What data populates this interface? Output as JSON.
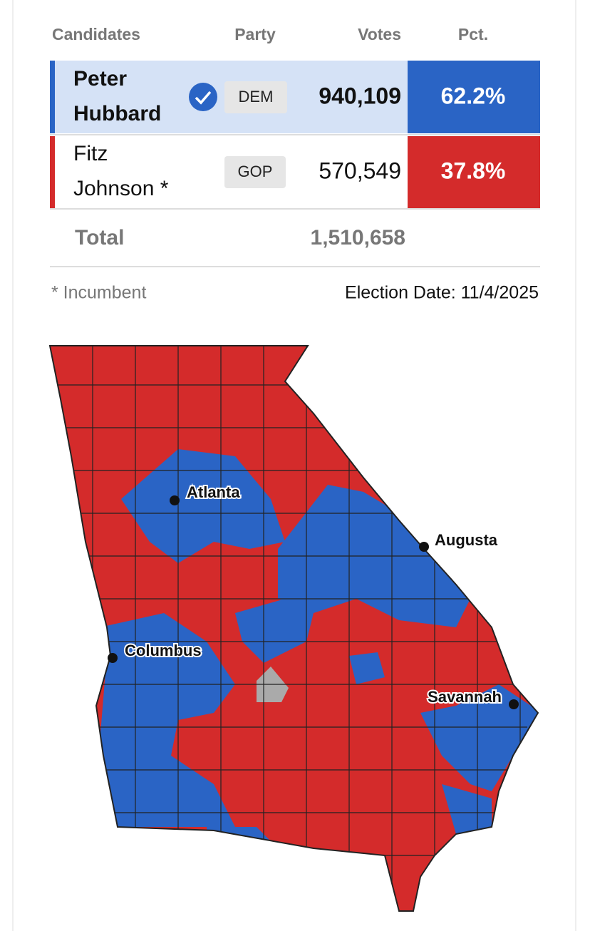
{
  "table": {
    "header": [
      "Candidates",
      "Party",
      "Votes",
      "Pct."
    ],
    "rows": [
      {
        "name_lines": [
          "Peter",
          "Hubbard"
        ],
        "party": "DEM",
        "votes": "940,109",
        "pct": "62.2%"
      },
      {
        "name_lines": [
          "Fitz",
          "Johnson *"
        ],
        "party": "GOP",
        "votes": "570,549",
        "pct": "37.8%"
      }
    ],
    "total_label": "Total",
    "total_votes": "1,510,658"
  },
  "footer": {
    "note": "* Incumbent",
    "date": "Election Date: 11/4/2025"
  },
  "map": {
    "cities": [
      "Atlanta",
      "Augusta",
      "Columbus",
      "Savannah"
    ]
  }
}
